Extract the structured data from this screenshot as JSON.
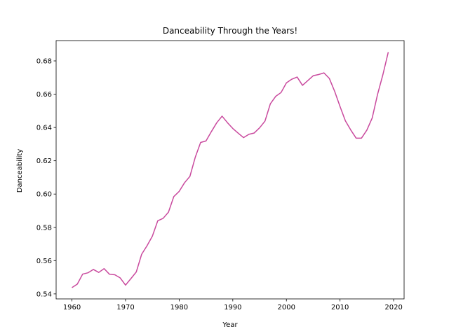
{
  "chart_data": {
    "type": "line",
    "title": "Danceability Through the Years!",
    "xlabel": "Year",
    "ylabel": "Danceability",
    "xlim": [
      1957.05,
      2021.95
    ],
    "ylim": [
      0.537,
      0.6922
    ],
    "xticks": [
      1960,
      1970,
      1980,
      1990,
      2000,
      2010,
      2020
    ],
    "yticks": [
      0.54,
      0.56,
      0.58,
      0.6,
      0.62,
      0.64,
      0.66,
      0.68
    ],
    "ytick_labels": [
      "0.54",
      "0.56",
      "0.58",
      "0.60",
      "0.62",
      "0.64",
      "0.66",
      "0.68"
    ],
    "grid": false,
    "line_color": "#c94a9e",
    "series": [
      {
        "x": [
          1960,
          1961,
          1962,
          1963,
          1964,
          1965,
          1966,
          1967,
          1968,
          1969,
          1970,
          1971,
          1972,
          1973,
          1974,
          1975,
          1976,
          1977,
          1978,
          1979,
          1980,
          1981,
          1982,
          1983,
          1984,
          1985,
          1986,
          1987,
          1988,
          1989,
          1990,
          1991,
          1992,
          1993,
          1994,
          1995,
          1996,
          1997,
          1998,
          1999,
          2000,
          2001,
          2002,
          2003,
          2004,
          2005,
          2006,
          2007,
          2008,
          2009,
          2010,
          2011,
          2012,
          2013,
          2014,
          2015,
          2016,
          2017,
          2018,
          2019
        ],
        "values": [
          0.5438,
          0.5459,
          0.5519,
          0.5527,
          0.5547,
          0.5529,
          0.5552,
          0.5518,
          0.5515,
          0.5496,
          0.5453,
          0.5492,
          0.5532,
          0.5638,
          0.5689,
          0.5747,
          0.5839,
          0.5854,
          0.5891,
          0.5985,
          0.6016,
          0.6068,
          0.6106,
          0.6221,
          0.631,
          0.6319,
          0.6375,
          0.6428,
          0.6468,
          0.6429,
          0.6394,
          0.6366,
          0.6339,
          0.6359,
          0.6367,
          0.6398,
          0.6438,
          0.6542,
          0.6587,
          0.661,
          0.6668,
          0.669,
          0.6703,
          0.6653,
          0.6682,
          0.6711,
          0.6718,
          0.6728,
          0.6695,
          0.6617,
          0.6526,
          0.644,
          0.6385,
          0.6336,
          0.6336,
          0.6384,
          0.6457,
          0.6599,
          0.6718,
          0.6853
        ]
      }
    ]
  }
}
